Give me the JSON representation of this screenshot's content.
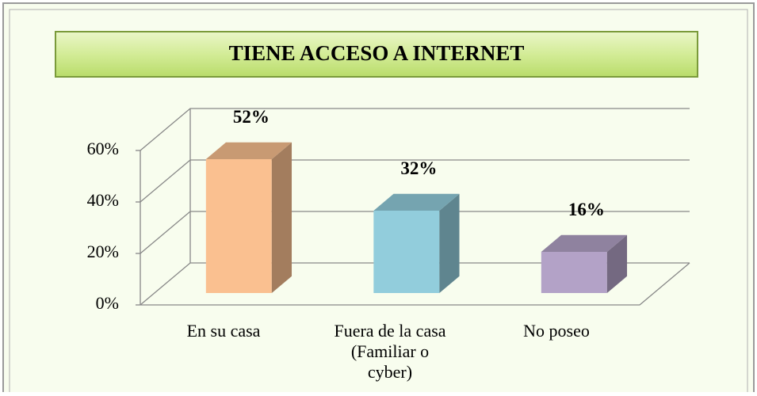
{
  "chart_data": {
    "type": "bar3d",
    "title": "TIENE ACCESO A INTERNET",
    "categories": [
      "En su casa",
      "Fuera de la casa (Familiar o cyber)",
      "No poseo"
    ],
    "values": [
      52,
      32,
      16
    ],
    "value_labels": [
      "52%",
      "32%",
      "16%"
    ],
    "colors": [
      "#fac090",
      "#92cddc",
      "#b3a2c7"
    ],
    "ylim": [
      0,
      60
    ],
    "yticks": [
      {
        "value": 0,
        "label": "0%"
      },
      {
        "value": 20,
        "label": "20%"
      },
      {
        "value": 40,
        "label": "40%"
      },
      {
        "value": 60,
        "label": "60%"
      }
    ],
    "grid": true
  }
}
